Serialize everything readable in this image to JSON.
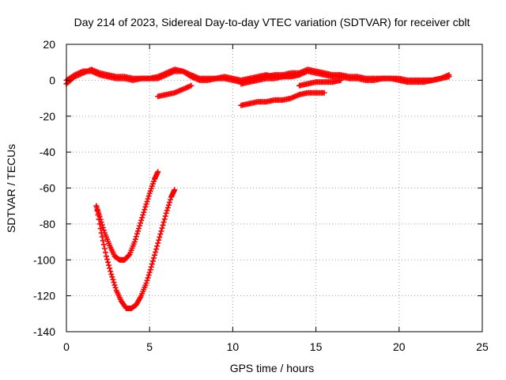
{
  "chart_data": {
    "type": "scatter",
    "title": "Day 214 of 2023, Sidereal Day-to-day VTEC variation (SDTVAR) for receiver cblt",
    "xlabel": "GPS time / hours",
    "ylabel": "SDTVAR / TECUs",
    "xlim": [
      0,
      25
    ],
    "ylim": [
      -140,
      20
    ],
    "xticks": [
      0,
      5,
      10,
      15,
      20,
      25
    ],
    "yticks": [
      -140,
      -120,
      -100,
      -80,
      -60,
      -40,
      -20,
      0,
      20
    ],
    "grid": true,
    "marker": "+",
    "color": "#ff0000",
    "series": [
      {
        "name": "arc-main-a",
        "x": [
          0.0,
          0.5,
          1.0,
          1.5,
          2.0,
          2.5,
          3.0,
          3.5,
          4.0,
          4.5,
          5.0,
          5.5,
          6.0,
          6.5,
          7.0,
          7.5,
          8.0,
          8.5,
          9.0,
          9.5,
          10.0,
          10.5,
          11.0,
          11.5,
          12.0,
          12.5,
          13.0,
          13.5,
          14.0,
          14.5,
          15.0,
          15.5,
          16.0,
          16.5,
          17.0,
          17.5,
          18.0,
          18.5,
          19.0,
          19.5,
          20.0,
          20.5,
          21.0,
          21.5,
          22.0,
          22.5,
          23.0
        ],
        "y": [
          -2,
          2,
          4,
          6,
          4,
          3,
          2,
          2,
          1,
          1,
          1,
          2,
          4,
          6,
          5,
          3,
          1,
          1,
          1,
          1,
          0,
          -1,
          0,
          1,
          2,
          3,
          3,
          4,
          4,
          6,
          5,
          4,
          3,
          3,
          2,
          2,
          1,
          1,
          1,
          1,
          1,
          0,
          0,
          0,
          0,
          1,
          2
        ]
      },
      {
        "name": "arc-main-b",
        "x": [
          0.0,
          0.5,
          1.0,
          1.5,
          2.0,
          2.5,
          3.0,
          3.5,
          4.0,
          4.5,
          5.0,
          5.5,
          6.0,
          6.5,
          7.0,
          7.5,
          8.0,
          8.5,
          9.0,
          9.5,
          10.0,
          10.5,
          11.0,
          11.5,
          12.0,
          12.5,
          13.0,
          13.5,
          14.0,
          14.5,
          15.0,
          15.5,
          16.0,
          16.5,
          17.0,
          17.5,
          18.0,
          18.5,
          19.0,
          19.5,
          20.0,
          20.5,
          21.0,
          21.5,
          22.0,
          22.5,
          23.0
        ],
        "y": [
          0,
          3,
          5,
          5,
          3,
          2,
          1,
          1,
          0,
          1,
          1,
          1,
          3,
          5,
          5,
          2,
          0,
          0,
          1,
          2,
          1,
          0,
          1,
          2,
          3,
          2,
          2,
          3,
          3,
          5,
          4,
          3,
          2,
          2,
          1,
          1,
          0,
          0,
          1,
          1,
          0,
          -1,
          -1,
          -1,
          0,
          1,
          3
        ]
      },
      {
        "name": "arc-upper-short",
        "x": [
          10.5,
          11.0,
          11.5,
          12.0,
          12.5,
          13.0,
          13.5,
          14.0
        ],
        "y": [
          -2,
          -1,
          0,
          1,
          1,
          2,
          2,
          3
        ]
      },
      {
        "name": "arc-low-small",
        "x": [
          14.0,
          14.5,
          15.0,
          15.5,
          16.0,
          16.5
        ],
        "y": [
          -3,
          -2,
          -1,
          -1,
          -1,
          0
        ]
      },
      {
        "name": "arc-minus10",
        "x": [
          5.5,
          6.0,
          6.5,
          7.0,
          7.5
        ],
        "y": [
          -9,
          -8,
          -7,
          -5,
          -3
        ]
      },
      {
        "name": "arc-minus12",
        "x": [
          10.5,
          11.0,
          11.5,
          12.0,
          12.5,
          13.0,
          13.5,
          14.0,
          14.5,
          15.0,
          15.5
        ],
        "y": [
          -14,
          -13,
          -12,
          -12,
          -11,
          -11,
          -10,
          -8,
          -7,
          -7,
          -7
        ]
      },
      {
        "name": "dip-100",
        "x": [
          1.8,
          2.0,
          2.3,
          2.6,
          2.9,
          3.2,
          3.5,
          3.8,
          4.1,
          4.4,
          4.7,
          5.0,
          5.3,
          5.5
        ],
        "y": [
          -70,
          -76,
          -85,
          -92,
          -98,
          -100,
          -100,
          -97,
          -90,
          -81,
          -72,
          -63,
          -55,
          -51
        ]
      },
      {
        "name": "dip-127",
        "x": [
          1.8,
          2.1,
          2.4,
          2.7,
          3.0,
          3.3,
          3.6,
          3.9,
          4.2,
          4.5,
          4.8,
          5.1,
          5.4,
          5.7,
          6.0,
          6.3,
          6.5
        ],
        "y": [
          -70,
          -85,
          -98,
          -108,
          -117,
          -123,
          -127,
          -127,
          -125,
          -120,
          -113,
          -104,
          -94,
          -84,
          -74,
          -65,
          -61
        ]
      }
    ]
  }
}
